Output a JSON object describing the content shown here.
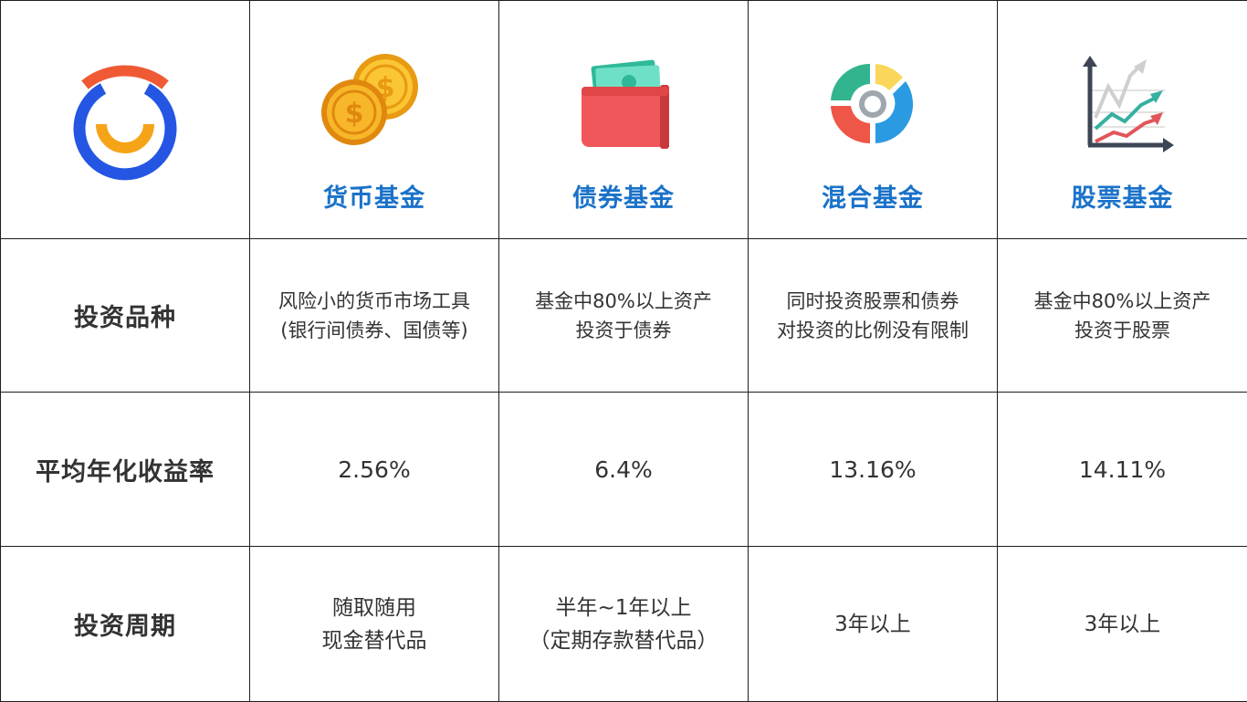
{
  "columns": [
    {
      "title": "货币基金",
      "icon": "coins-icon"
    },
    {
      "title": "债券基金",
      "icon": "wallet-icon"
    },
    {
      "title": "混合基金",
      "icon": "donut-chart-icon"
    },
    {
      "title": "股票基金",
      "icon": "line-chart-icon"
    }
  ],
  "rows": [
    {
      "label": "投资品种",
      "cells": [
        [
          "风险小的货币市场工具",
          "(银行间债券、国债等)"
        ],
        [
          "基金中80%以上资产",
          "投资于债券"
        ],
        [
          "同时投资股票和债券",
          "对投资的比例没有限制"
        ],
        [
          "基金中80%以上资产",
          "投资于股票"
        ]
      ]
    },
    {
      "label": "平均年化收益率",
      "cells": [
        [
          "2.56%"
        ],
        [
          "6.4%"
        ],
        [
          "13.16%"
        ],
        [
          "14.11%"
        ]
      ]
    },
    {
      "label": "投资周期",
      "cells": [
        [
          "随取随用",
          "现金替代品"
        ],
        [
          "半年~1年以上",
          "（定期存款替代品）"
        ],
        [
          "3年以上"
        ],
        [
          "3年以上"
        ]
      ]
    }
  ],
  "colors": {
    "title_blue": "#1a72c9",
    "logo_blue": "#2456e3",
    "logo_orange": "#f5a418",
    "logo_red": "#ef5a34",
    "grid_line": "#1e1e1e"
  }
}
